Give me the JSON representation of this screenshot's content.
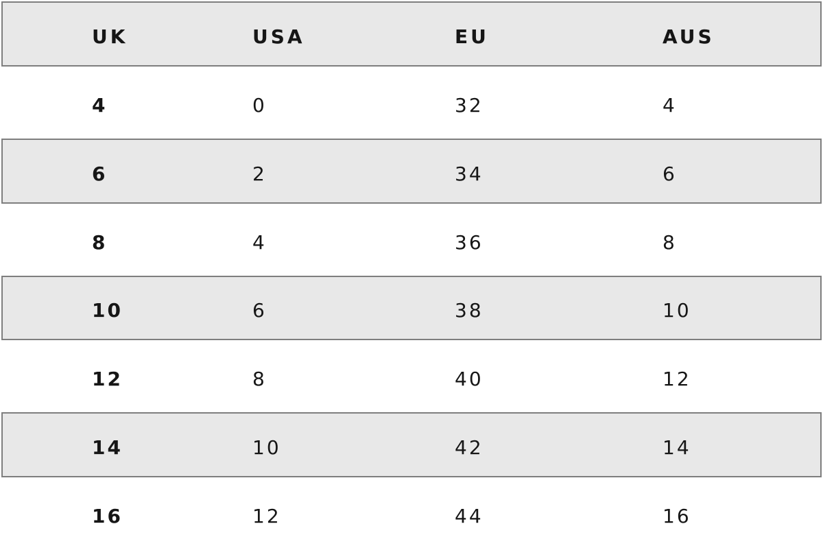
{
  "table": {
    "headers": [
      "UK",
      "USA",
      "EU",
      "AUS"
    ],
    "rows": [
      {
        "uk": "4",
        "usa": "0",
        "eu": "32",
        "aus": "4"
      },
      {
        "uk": "6",
        "usa": "2",
        "eu": "34",
        "aus": "6"
      },
      {
        "uk": "8",
        "usa": "4",
        "eu": "36",
        "aus": "8"
      },
      {
        "uk": "10",
        "usa": "6",
        "eu": "38",
        "aus": "10"
      },
      {
        "uk": "12",
        "usa": "8",
        "eu": "40",
        "aus": "12"
      },
      {
        "uk": "14",
        "usa": "10",
        "eu": "42",
        "aus": "14"
      },
      {
        "uk": "16",
        "usa": "12",
        "eu": "44",
        "aus": "16"
      }
    ]
  },
  "colors": {
    "background": "#ffffff",
    "row_shade": "#e8e8e8",
    "border": "#7e7e7e",
    "text": "#161616"
  },
  "chart_data": {
    "type": "table",
    "columns": [
      "UK",
      "USA",
      "EU",
      "AUS"
    ],
    "rows": [
      [
        4,
        0,
        32,
        4
      ],
      [
        6,
        2,
        34,
        6
      ],
      [
        8,
        4,
        36,
        8
      ],
      [
        10,
        6,
        38,
        10
      ],
      [
        12,
        8,
        40,
        12
      ],
      [
        14,
        10,
        42,
        14
      ],
      [
        16,
        12,
        44,
        16
      ]
    ],
    "notes": "Clothing size conversion table; shaded rows alternate starting with header row, UK column and headers are bold"
  }
}
